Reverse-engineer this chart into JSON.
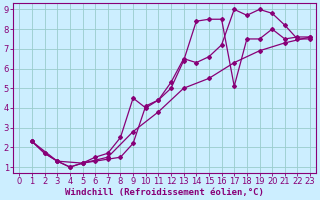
{
  "xlabel": "Windchill (Refroidissement éolien,°C)",
  "bg_color": "#cceeff",
  "line_color": "#880077",
  "grid_color": "#99cccc",
  "line1_x": [
    1,
    2,
    3,
    4,
    5,
    6,
    7,
    8,
    9,
    10,
    11,
    12,
    13,
    14,
    15,
    16,
    17,
    18,
    19,
    20,
    21,
    22,
    23
  ],
  "line1_y": [
    2.3,
    1.7,
    1.3,
    1.0,
    1.2,
    1.3,
    1.4,
    1.5,
    2.2,
    4.1,
    4.4,
    5.0,
    6.4,
    8.4,
    8.5,
    8.5,
    5.1,
    7.5,
    7.5,
    8.0,
    7.5,
    7.6,
    7.6
  ],
  "line2_x": [
    1,
    2,
    3,
    4,
    5,
    6,
    7,
    8,
    9,
    10,
    11,
    12,
    13,
    14,
    15,
    16,
    17,
    18,
    19,
    20,
    21,
    22,
    23
  ],
  "line2_y": [
    2.3,
    1.7,
    1.3,
    1.0,
    1.2,
    1.5,
    1.7,
    2.5,
    4.5,
    4.0,
    4.4,
    5.3,
    6.5,
    6.3,
    6.6,
    7.2,
    9.0,
    8.7,
    9.0,
    8.8,
    8.2,
    7.5,
    7.5
  ],
  "line3_x": [
    1,
    3,
    5,
    7,
    9,
    11,
    13,
    15,
    17,
    19,
    21,
    23
  ],
  "line3_y": [
    2.3,
    1.3,
    1.2,
    1.5,
    2.8,
    3.8,
    5.0,
    5.5,
    6.3,
    6.9,
    7.3,
    7.6
  ],
  "xlim": [
    -0.5,
    23.5
  ],
  "ylim": [
    0.7,
    9.3
  ],
  "xticks": [
    0,
    1,
    2,
    3,
    4,
    5,
    6,
    7,
    8,
    9,
    10,
    11,
    12,
    13,
    14,
    15,
    16,
    17,
    18,
    19,
    20,
    21,
    22,
    23
  ],
  "yticks": [
    1,
    2,
    3,
    4,
    5,
    6,
    7,
    8,
    9
  ],
  "tick_fontsize": 6,
  "xlabel_fontsize": 6.5,
  "marker": "D",
  "markersize": 2.0,
  "linewidth": 0.9
}
